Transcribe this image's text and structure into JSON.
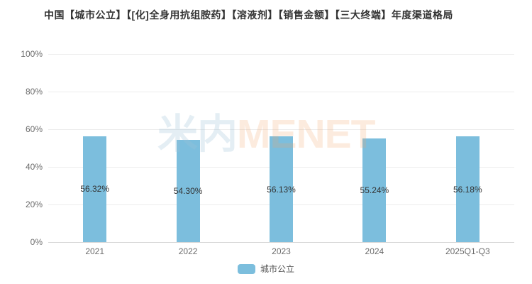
{
  "title": "中国【城市公立】【[化]全身用抗组胺药】【溶液剂】【销售金额】【三大终端】年度渠道格局",
  "watermark": {
    "cn": "米内",
    "en": "MENET"
  },
  "legend": {
    "label": "城市公立"
  },
  "colors": {
    "bar": "#7cbedd",
    "grid": "#ececec",
    "axis_line": "#d9d9d9",
    "title_text": "#333333",
    "axis_text": "#6b6b6b",
    "value_text": "#333333",
    "watermark_cn": "rgba(158,193,214,0.28)",
    "watermark_en": "rgba(242,166,104,0.22)"
  },
  "chart_data": {
    "type": "bar",
    "categories": [
      "2021",
      "2022",
      "2023",
      "2024",
      "2025Q1-Q3"
    ],
    "series": [
      {
        "name": "城市公立",
        "values": [
          56.32,
          54.3,
          56.13,
          55.24,
          56.18
        ]
      }
    ],
    "value_labels": [
      "56.32%",
      "54.30%",
      "56.13%",
      "55.24%",
      "56.18%"
    ],
    "title": "中国【城市公立】【[化]全身用抗组胺药】【溶液剂】【销售金额】【三大终端】年度渠道格局",
    "xlabel": "",
    "ylabel": "",
    "ylim": [
      0,
      100
    ],
    "yticks": [
      0,
      20,
      40,
      60,
      80,
      100
    ],
    "ytick_labels": [
      "0%",
      "20%",
      "40%",
      "60%",
      "80%",
      "100%"
    ],
    "grid": true,
    "legend_position": "bottom"
  }
}
